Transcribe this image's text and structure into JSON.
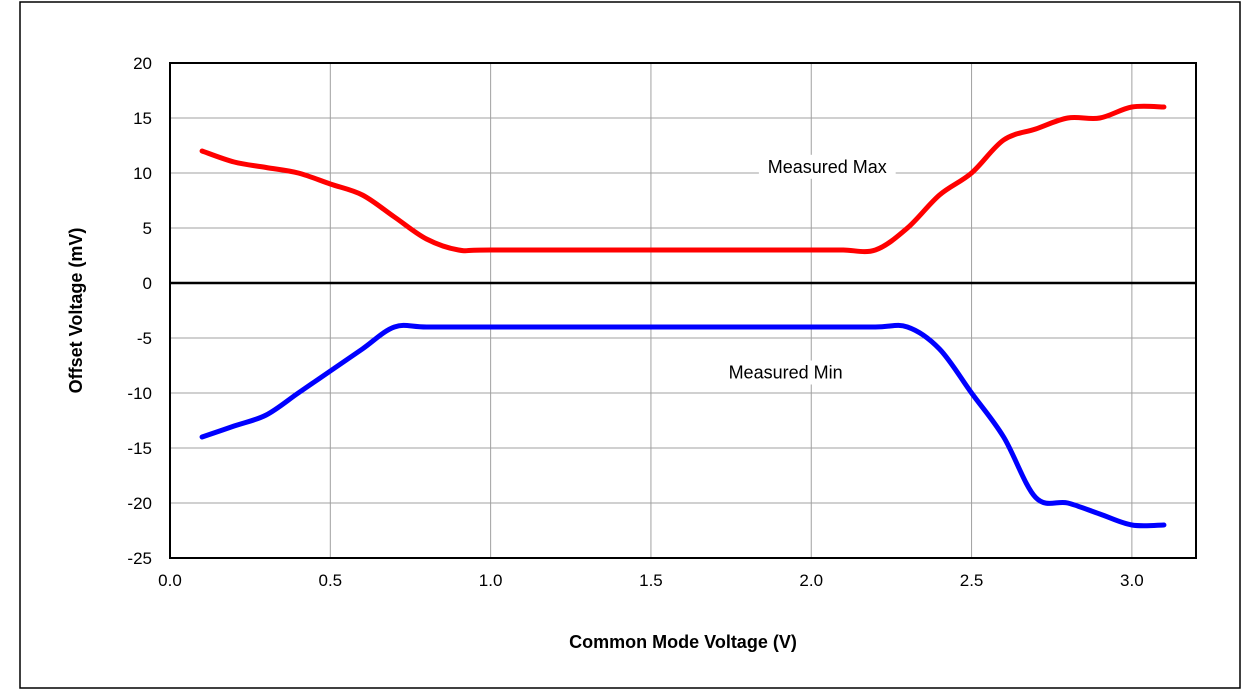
{
  "chart_data": {
    "type": "line",
    "title": "",
    "xlabel": "Common Mode Voltage (V)",
    "ylabel": "Offset Voltage (mV)",
    "xlim": [
      0.0,
      3.2
    ],
    "ylim": [
      -25,
      20
    ],
    "x_ticks": [
      "0.0",
      "0.5",
      "1.0",
      "1.5",
      "2.0",
      "2.5",
      "3.0"
    ],
    "x_tick_values": [
      0.0,
      0.5,
      1.0,
      1.5,
      2.0,
      2.5,
      3.0
    ],
    "y_ticks": [
      "20",
      "15",
      "10",
      "5",
      "0",
      "-5",
      "-10",
      "-15",
      "-20",
      "-25"
    ],
    "y_tick_values": [
      20,
      15,
      10,
      5,
      0,
      -5,
      -10,
      -15,
      -20,
      -25
    ],
    "grid": true,
    "legend": "none",
    "series": [
      {
        "name": "Measured Max",
        "color": "#ff0000",
        "x": [
          0.1,
          0.2,
          0.3,
          0.4,
          0.5,
          0.6,
          0.7,
          0.8,
          0.9,
          1.0,
          1.5,
          2.0,
          2.1,
          2.2,
          2.3,
          2.4,
          2.5,
          2.6,
          2.7,
          2.8,
          2.9,
          3.0,
          3.1
        ],
        "values": [
          12.0,
          11.0,
          10.5,
          10.0,
          9.0,
          8.0,
          6.0,
          4.0,
          3.0,
          3.0,
          3.0,
          3.0,
          3.0,
          3.0,
          5.0,
          8.0,
          10.0,
          13.0,
          14.0,
          15.0,
          15.0,
          16.0,
          16.0
        ]
      },
      {
        "name": "Measured Min",
        "color": "#0000ff",
        "x": [
          0.1,
          0.2,
          0.3,
          0.4,
          0.5,
          0.6,
          0.7,
          0.8,
          1.0,
          1.5,
          2.0,
          2.2,
          2.3,
          2.4,
          2.5,
          2.6,
          2.7,
          2.8,
          2.9,
          3.0,
          3.1
        ],
        "values": [
          -14.0,
          -13.0,
          -12.0,
          -10.0,
          -8.0,
          -6.0,
          -4.0,
          -4.0,
          -4.0,
          -4.0,
          -4.0,
          -4.0,
          -4.0,
          -6.0,
          -10.0,
          -14.0,
          -19.5,
          -20.0,
          -21.0,
          -22.0,
          -22.0
        ]
      }
    ],
    "annotations": [
      {
        "text": "Measured Max",
        "x": 2.05,
        "y": 10.2
      },
      {
        "text": "Measured Min",
        "x": 1.92,
        "y": -8.5
      }
    ]
  }
}
